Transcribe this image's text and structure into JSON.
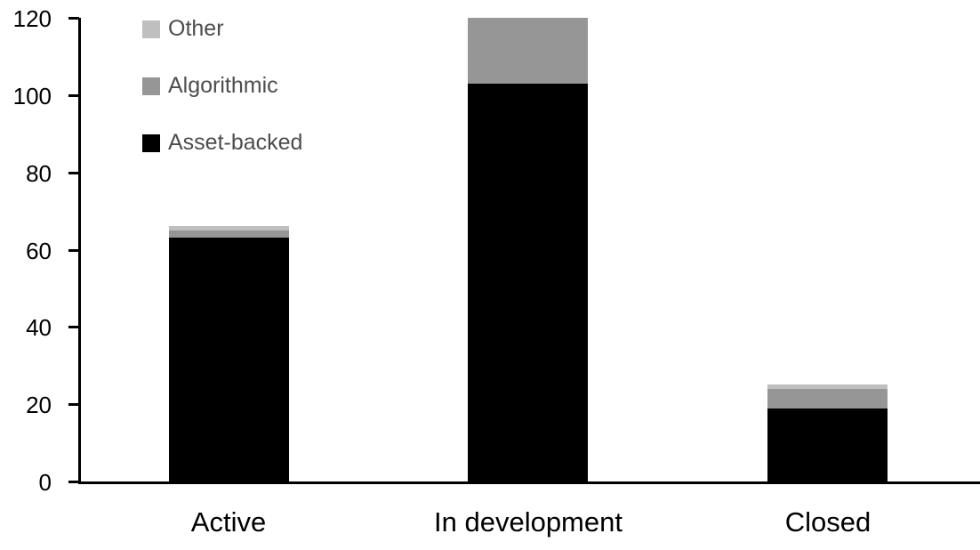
{
  "chart_data": {
    "type": "bar",
    "stacked": true,
    "title": "",
    "xlabel": "",
    "ylabel": "",
    "categories": [
      "Active",
      "In development",
      "Closed"
    ],
    "series": [
      {
        "name": "Asset-backed",
        "color": "#000000",
        "values": [
          63,
          103,
          19
        ]
      },
      {
        "name": "Algorithmic",
        "color": "#969696",
        "values": [
          2,
          17,
          5
        ]
      },
      {
        "name": "Other",
        "color": "#BFBFBF",
        "values": [
          1,
          0,
          1
        ]
      }
    ],
    "totals": [
      66,
      120,
      25
    ],
    "ylim": [
      0,
      120
    ],
    "ytick_step": 20,
    "ytick_labels": [
      "0",
      "20",
      "40",
      "60",
      "80",
      "100",
      "120"
    ],
    "grid": false,
    "axis_color": "#000000",
    "legend": {
      "position": "top-left",
      "order_top_to_bottom": [
        "Other",
        "Algorithmic",
        "Asset-backed"
      ],
      "text_color": "#4D4D4D"
    }
  }
}
